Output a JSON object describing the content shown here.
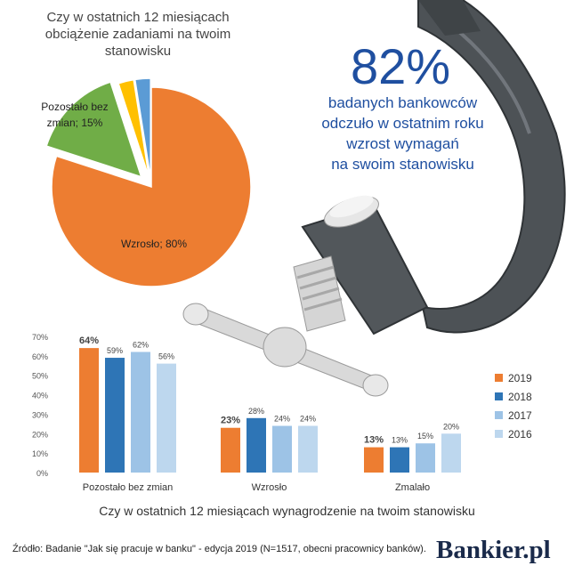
{
  "pie": {
    "title": "Czy w ostatnich 12 miesiącach obciążenie zadaniami na twoim stanowisku",
    "label_grow": "Wzrosło; 80%",
    "label_same_line1": "Pozostało bez",
    "label_same_line2": "zmian; 15%"
  },
  "highlight": {
    "pct": "82%",
    "line1": "badanych bankowców",
    "line2": "odczuło w ostatnim roku",
    "line3": "wzrost wymagań",
    "line4": "na swoim stanowisku"
  },
  "footer": {
    "source": "Źródło: Badanie \"Jak się pracuje w banku\" - edycja 2019 (N=1517, obecni pracownicy banków).",
    "logo": "Bankier.pl"
  },
  "colors": {
    "grow": "#ed7d31",
    "same": "#70ad47",
    "yellow": "#ffc000",
    "blue_small": "#5b9bd5",
    "y2019": "#ed7d31",
    "y2018": "#2e75b6",
    "y2017": "#9dc3e6",
    "y2016": "#bdd7ee",
    "clamp": "#555a5e",
    "clamp_dark": "#2f3336",
    "screw": "#d9d9d9"
  },
  "chart_data": [
    {
      "type": "pie",
      "title": "Czy w ostatnich 12 miesiącach obciążenie zadaniami na twoim stanowisku",
      "slices": [
        {
          "label": "Wzrosło",
          "value": 80
        },
        {
          "label": "Pozostało bez zmian",
          "value": 15
        },
        {
          "label": "",
          "value": 2.5
        },
        {
          "label": "",
          "value": 2.5
        }
      ]
    },
    {
      "type": "bar",
      "title": "Czy w ostatnich 12 miesiącach wynagrodzenie na twoim stanowisku",
      "categories": [
        "Pozostało bez zmian",
        "Wzrosło",
        "Zmalało"
      ],
      "series": [
        {
          "name": "2019",
          "values": [
            64,
            23,
            13
          ]
        },
        {
          "name": "2018",
          "values": [
            59,
            28,
            13
          ]
        },
        {
          "name": "2017",
          "values": [
            62,
            24,
            15
          ]
        },
        {
          "name": "2016",
          "values": [
            56,
            24,
            20
          ]
        }
      ],
      "yticks": [
        "0%",
        "10%",
        "20%",
        "30%",
        "40%",
        "50%",
        "60%",
        "70%"
      ],
      "ylim": [
        0,
        70
      ],
      "grid": false,
      "legend": "right"
    }
  ]
}
